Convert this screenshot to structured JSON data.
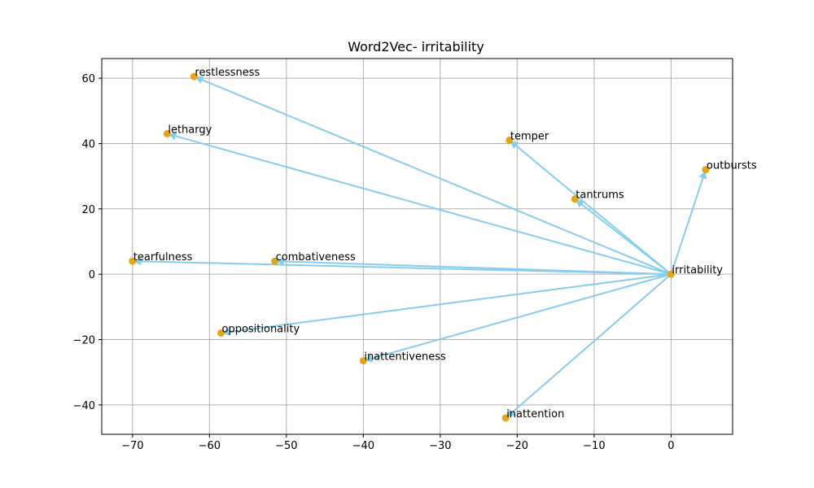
{
  "chart_data": {
    "type": "scatter",
    "title": "Word2Vec- irritability",
    "xlabel": "",
    "ylabel": "",
    "xlim": [
      -74,
      8
    ],
    "ylim": [
      -49,
      66
    ],
    "xticks": [
      -70,
      -60,
      -50,
      -40,
      -30,
      -20,
      -10,
      0
    ],
    "yticks": [
      -40,
      -20,
      0,
      20,
      40,
      60
    ],
    "grid": true,
    "colors": {
      "point": "#e8a317",
      "arrow": "#87cded"
    },
    "origin": {
      "word": "irritability",
      "x": 0,
      "y": 0
    },
    "points": [
      {
        "word": "restlessness",
        "x": -62,
        "y": 60.5
      },
      {
        "word": "lethargy",
        "x": -65.5,
        "y": 43
      },
      {
        "word": "temper",
        "x": -21,
        "y": 41
      },
      {
        "word": "outbursts",
        "x": 4.5,
        "y": 32
      },
      {
        "word": "tantrums",
        "x": -12.5,
        "y": 23
      },
      {
        "word": "tearfulness",
        "x": -70,
        "y": 4
      },
      {
        "word": "combativeness",
        "x": -51.5,
        "y": 4
      },
      {
        "word": "oppositionality",
        "x": -58.5,
        "y": -18
      },
      {
        "word": "inattentiveness",
        "x": -40,
        "y": -26.5
      },
      {
        "word": "inattention",
        "x": -21.5,
        "y": -44
      }
    ]
  }
}
